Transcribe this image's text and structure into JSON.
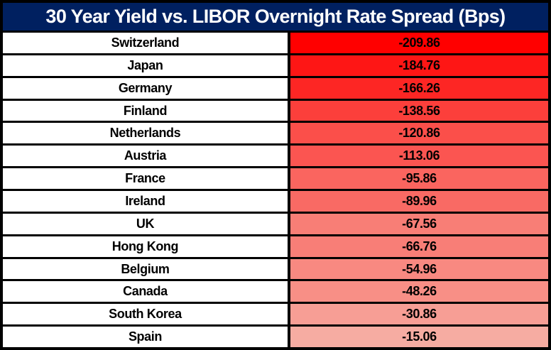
{
  "title": "30 Year Yield vs. LIBOR Overnight Rate Spread (Bps)",
  "colors": {
    "header_bg": "#002060",
    "header_text": "#FFFFFF",
    "border": "#000000",
    "country_bg": "#FFFFFF",
    "row_text": "#000000",
    "scale_max_color": "#FF0000",
    "scale_min_color": "#F6ACA2"
  },
  "chart_data": {
    "type": "table",
    "title": "30 Year Yield vs. LIBOR Overnight Rate Spread (Bps)",
    "columns": [
      "Country",
      "Spread (Bps)"
    ],
    "value_range": [
      -209.86,
      -15.06
    ],
    "legend_position": "none",
    "rows": [
      {
        "country": "Switzerland",
        "value": -209.86,
        "display": "-209.86",
        "cell_color": "#FF0000"
      },
      {
        "country": "Japan",
        "value": -184.76,
        "display": "-184.76",
        "cell_color": "#FE1615"
      },
      {
        "country": "Germany",
        "value": -166.26,
        "display": "-166.26",
        "cell_color": "#FD2624"
      },
      {
        "country": "Finland",
        "value": -138.56,
        "display": "-138.56",
        "cell_color": "#FC3F3B"
      },
      {
        "country": "Netherlands",
        "value": -120.86,
        "display": "-120.86",
        "cell_color": "#FB4F4A"
      },
      {
        "country": "Austria",
        "value": -113.06,
        "display": "-113.06",
        "cell_color": "#FB5551"
      },
      {
        "country": "France",
        "value": -95.86,
        "display": "-95.86",
        "cell_color": "#FA655F"
      },
      {
        "country": "Ireland",
        "value": -89.96,
        "display": "-89.96",
        "cell_color": "#F96A64"
      },
      {
        "country": "UK",
        "value": -67.56,
        "display": "-67.56",
        "cell_color": "#F87E76"
      },
      {
        "country": "Hong Kong",
        "value": -66.76,
        "display": "-66.76",
        "cell_color": "#F87E77"
      },
      {
        "country": "Belgium",
        "value": -54.96,
        "display": "-54.96",
        "cell_color": "#F88981"
      },
      {
        "country": "Canada",
        "value": -48.26,
        "display": "-48.26",
        "cell_color": "#F88F86"
      },
      {
        "country": "South Korea",
        "value": -30.86,
        "display": "-30.86",
        "cell_color": "#F79E95"
      },
      {
        "country": "Spain",
        "value": -15.06,
        "display": "-15.06",
        "cell_color": "#F6ACA2"
      }
    ]
  }
}
